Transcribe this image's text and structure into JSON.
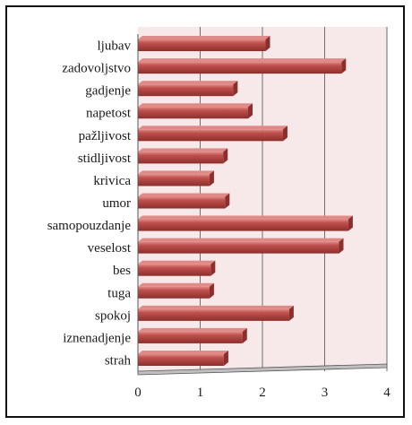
{
  "chart_data": {
    "type": "bar",
    "orientation": "horizontal",
    "categories": [
      "ljubav",
      "zadovoljstvo",
      "gadjenje",
      "napetost",
      "pažljivost",
      "stidljivost",
      "krivica",
      "umor",
      "samopouzdanje",
      "veselost",
      "bes",
      "tuga",
      "spokoj",
      "iznenadjenje",
      "strah"
    ],
    "values": [
      2.05,
      3.27,
      1.53,
      1.77,
      2.33,
      1.37,
      1.15,
      1.4,
      3.38,
      3.23,
      1.17,
      1.15,
      2.43,
      1.68,
      1.38
    ],
    "xlim": [
      0,
      4
    ],
    "xticks": [
      "0",
      "1",
      "2",
      "3",
      "4"
    ],
    "grid": true,
    "colors": {
      "bar": "#c0504d",
      "bar_dark": "#8c2f2c",
      "bar_light": "#e08a87",
      "plot_bg": "#f7e9ea",
      "grid": "#6e6e6e"
    }
  }
}
